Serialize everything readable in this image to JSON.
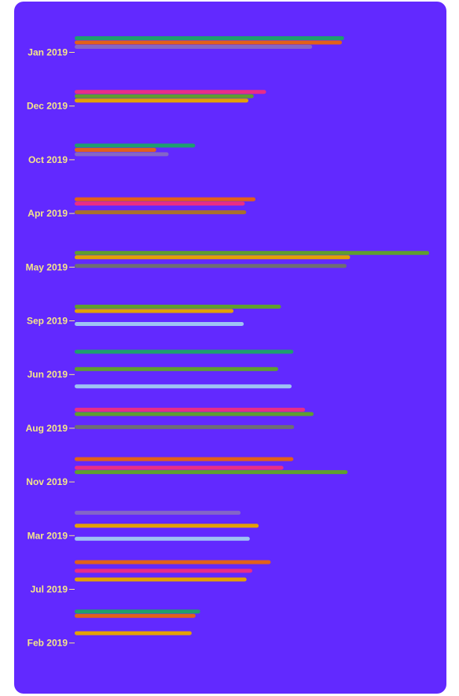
{
  "chart_data": {
    "type": "bar",
    "orientation": "horizontal",
    "title": "",
    "xlabel": "",
    "ylabel": "",
    "grid": false,
    "legend": "none",
    "background": "#6229FF",
    "tick_label_color": "#F5E58A",
    "xlim": [
      0,
      100
    ],
    "categories": [
      "Jan 2019",
      "Dec 2019",
      "Oct 2019",
      "Apr 2019",
      "May 2019",
      "Sep 2019",
      "Jun 2019",
      "Aug 2019",
      "Nov 2019",
      "Mar 2019",
      "Jul 2019",
      "Feb 2019"
    ],
    "groups": [
      {
        "category": "Jan 2019",
        "bars": [
          {
            "slot": 0,
            "value": 76,
            "color": "#1E9E6E"
          },
          {
            "slot": 1,
            "value": 75.4,
            "color": "#E2601A"
          },
          {
            "slot": 2,
            "value": 67,
            "color": "#8466C7"
          }
        ]
      },
      {
        "category": "Dec 2019",
        "bars": [
          {
            "slot": 0,
            "value": 54,
            "color": "#E82D87"
          },
          {
            "slot": 1,
            "value": 50.5,
            "color": "#5F9E2E"
          },
          {
            "slot": 2,
            "value": 49,
            "color": "#E3A005"
          }
        ]
      },
      {
        "category": "Oct 2019",
        "bars": [
          {
            "slot": 0,
            "value": 34,
            "color": "#1E9E6E"
          },
          {
            "slot": 1,
            "value": 23,
            "color": "#E2601A"
          },
          {
            "slot": 2,
            "value": 26.5,
            "color": "#8466C7"
          }
        ]
      },
      {
        "category": "Apr 2019",
        "bars": [
          {
            "slot": 0,
            "value": 51,
            "color": "#E2601A"
          },
          {
            "slot": 1,
            "value": 48,
            "color": "#E82D87"
          },
          {
            "slot": 3,
            "value": 48.4,
            "color": "#A9702A"
          }
        ]
      },
      {
        "category": "May 2019",
        "bars": [
          {
            "slot": 0,
            "value": 100,
            "color": "#5F9E2E"
          },
          {
            "slot": 1,
            "value": 77.7,
            "color": "#E3A005"
          },
          {
            "slot": 3,
            "value": 76.7,
            "color": "#6E6E73"
          }
        ]
      },
      {
        "category": "Sep 2019",
        "bars": [
          {
            "slot": 0,
            "value": 58.2,
            "color": "#5F9E2E"
          },
          {
            "slot": 1,
            "value": 44.8,
            "color": "#E3A005"
          },
          {
            "slot": 4,
            "value": 47.7,
            "color": "#9EC3F3"
          }
        ]
      },
      {
        "category": "Jun 2019",
        "bars": [
          {
            "slot": -2,
            "value": 61.7,
            "color": "#1E9E6E"
          },
          {
            "slot": 2,
            "value": 57.4,
            "color": "#5F9E2E"
          },
          {
            "slot": 6,
            "value": 61.2,
            "color": "#9EC3F3"
          }
        ]
      },
      {
        "category": "Aug 2019",
        "bars": [
          {
            "slot": -1,
            "value": 65,
            "color": "#E82D87"
          },
          {
            "slot": 0,
            "value": 67.4,
            "color": "#5F9E2E"
          },
          {
            "slot": 3,
            "value": 61.9,
            "color": "#6E6E73"
          }
        ]
      },
      {
        "category": "Nov 2019",
        "bars": [
          {
            "slot": -2,
            "value": 61.7,
            "color": "#E2601A"
          },
          {
            "slot": 0,
            "value": 58.9,
            "color": "#E82D87"
          },
          {
            "slot": 1,
            "value": 77,
            "color": "#5F9E2E"
          }
        ]
      },
      {
        "category": "Mar 2019",
        "bars": [
          {
            "slot": -2,
            "value": 46.8,
            "color": "#8466C7"
          },
          {
            "slot": 1,
            "value": 51.9,
            "color": "#E3A005"
          },
          {
            "slot": 4,
            "value": 49.4,
            "color": "#9EC3F3"
          }
        ]
      },
      {
        "category": "Jul 2019",
        "bars": [
          {
            "slot": -3,
            "value": 55.3,
            "color": "#E2601A"
          },
          {
            "slot": -1,
            "value": 50.1,
            "color": "#E82D87"
          },
          {
            "slot": 1,
            "value": 48.5,
            "color": "#E3A005"
          }
        ]
      },
      {
        "category": "Feb 2019",
        "bars": [
          {
            "slot": -4,
            "value": 35.4,
            "color": "#1E9E6E"
          },
          {
            "slot": -3,
            "value": 34.1,
            "color": "#E2601A"
          },
          {
            "slot": 1,
            "value": 33,
            "color": "#E3A005"
          }
        ]
      }
    ]
  }
}
